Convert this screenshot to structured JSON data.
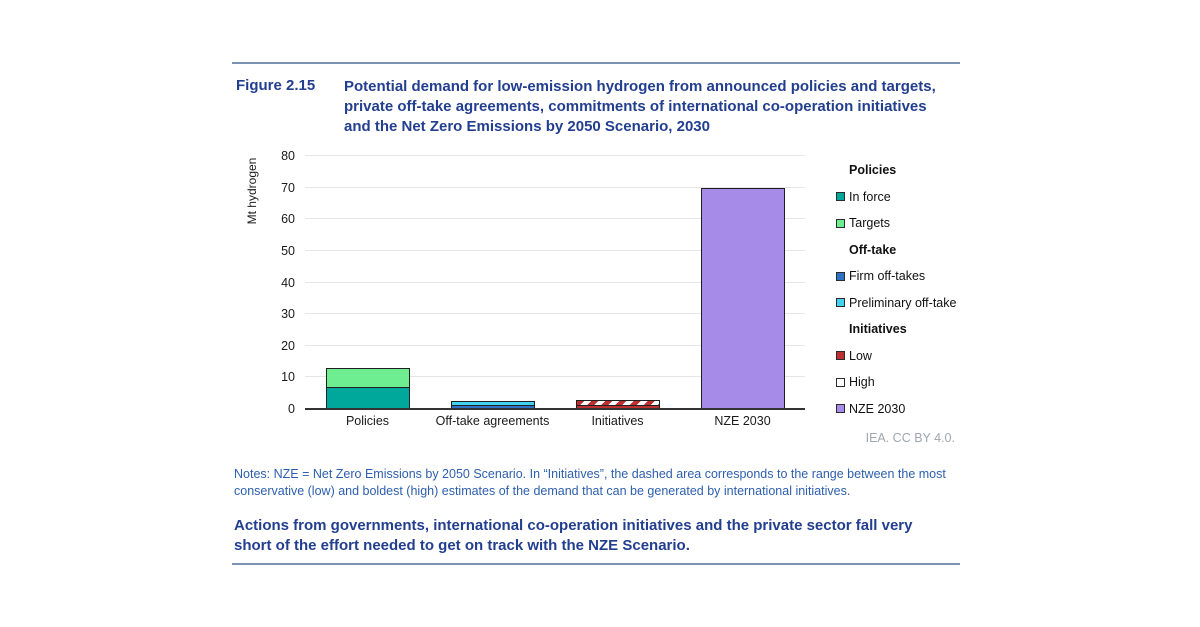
{
  "figure": {
    "label": "Figure 2.15",
    "title": "Potential demand for low-emission hydrogen from announced policies and targets, private off-take agreements, commitments of international co-operation initiatives and the Net Zero Emissions by 2050 Scenario, 2030"
  },
  "chart_data": {
    "type": "bar",
    "stacked": true,
    "title": "Potential demand for low-emission hydrogen, 2030",
    "xlabel": "",
    "ylabel": "Mt hydrogen",
    "ylim": [
      0,
      80
    ],
    "yticks": [
      0,
      10,
      20,
      30,
      40,
      50,
      60,
      70,
      80
    ],
    "grid": true,
    "legend_position": "right",
    "categories": [
      "Policies",
      "Off-take agreements",
      "Initiatives",
      "NZE 2030"
    ],
    "bars": [
      {
        "category": "Policies",
        "total": 13,
        "segments": [
          {
            "name": "In force",
            "value": 6.5,
            "color": "#00A79B"
          },
          {
            "name": "Targets",
            "value": 6.5,
            "color": "#6FEE91"
          }
        ]
      },
      {
        "category": "Off-take agreements",
        "total": 2.5,
        "segments": [
          {
            "name": "Firm off-takes",
            "value": 0.8,
            "color": "#2D72C4"
          },
          {
            "name": "Preliminary off-take",
            "value": 1.7,
            "color": "#42D1F0"
          }
        ]
      },
      {
        "category": "Initiatives",
        "total": 3,
        "segments": [
          {
            "name": "Low",
            "value": 0.8,
            "color": "#BE2F31"
          },
          {
            "name": "High",
            "value": 2.2,
            "color": "#FFFFFF",
            "pattern": "hatch"
          }
        ]
      },
      {
        "category": "NZE 2030",
        "total": 70,
        "segments": [
          {
            "name": "NZE 2030",
            "value": 70,
            "color": "#A78BE8"
          }
        ]
      }
    ]
  },
  "legend": {
    "groups": [
      {
        "header": "Policies",
        "items": [
          {
            "label": "In force",
            "color": "#00A79B"
          },
          {
            "label": "Targets",
            "color": "#6FEE91"
          }
        ]
      },
      {
        "header": "Off-take",
        "items": [
          {
            "label": "Firm off-takes",
            "color": "#2D72C4"
          },
          {
            "label": "Preliminary off-take",
            "color": "#42D1F0"
          }
        ]
      },
      {
        "header": "Initiatives",
        "items": [
          {
            "label": "Low",
            "color": "#BE2F31"
          },
          {
            "label": "High",
            "color": "#FFFFFF"
          },
          {
            "label": "NZE 2030",
            "color": "#A78BE8"
          }
        ]
      }
    ]
  },
  "attribution": "IEA. CC BY 4.0.",
  "notes": "Notes: NZE = Net Zero Emissions by 2050 Scenario. In “Initiatives”, the dashed area corresponds to the range between the most conservative (low) and boldest (high) estimates of the demand that can be generated by international initiatives.",
  "statement": "Actions from governments, international co-operation initiatives and the private sector fall very short of the effort needed to get on track with the NZE Scenario.",
  "colors": {
    "title_blue": "#223E8F",
    "notes_blue": "#2D5FAE",
    "rule_blue": "#7C92B4",
    "attribution_gray": "#9FA6AD"
  }
}
